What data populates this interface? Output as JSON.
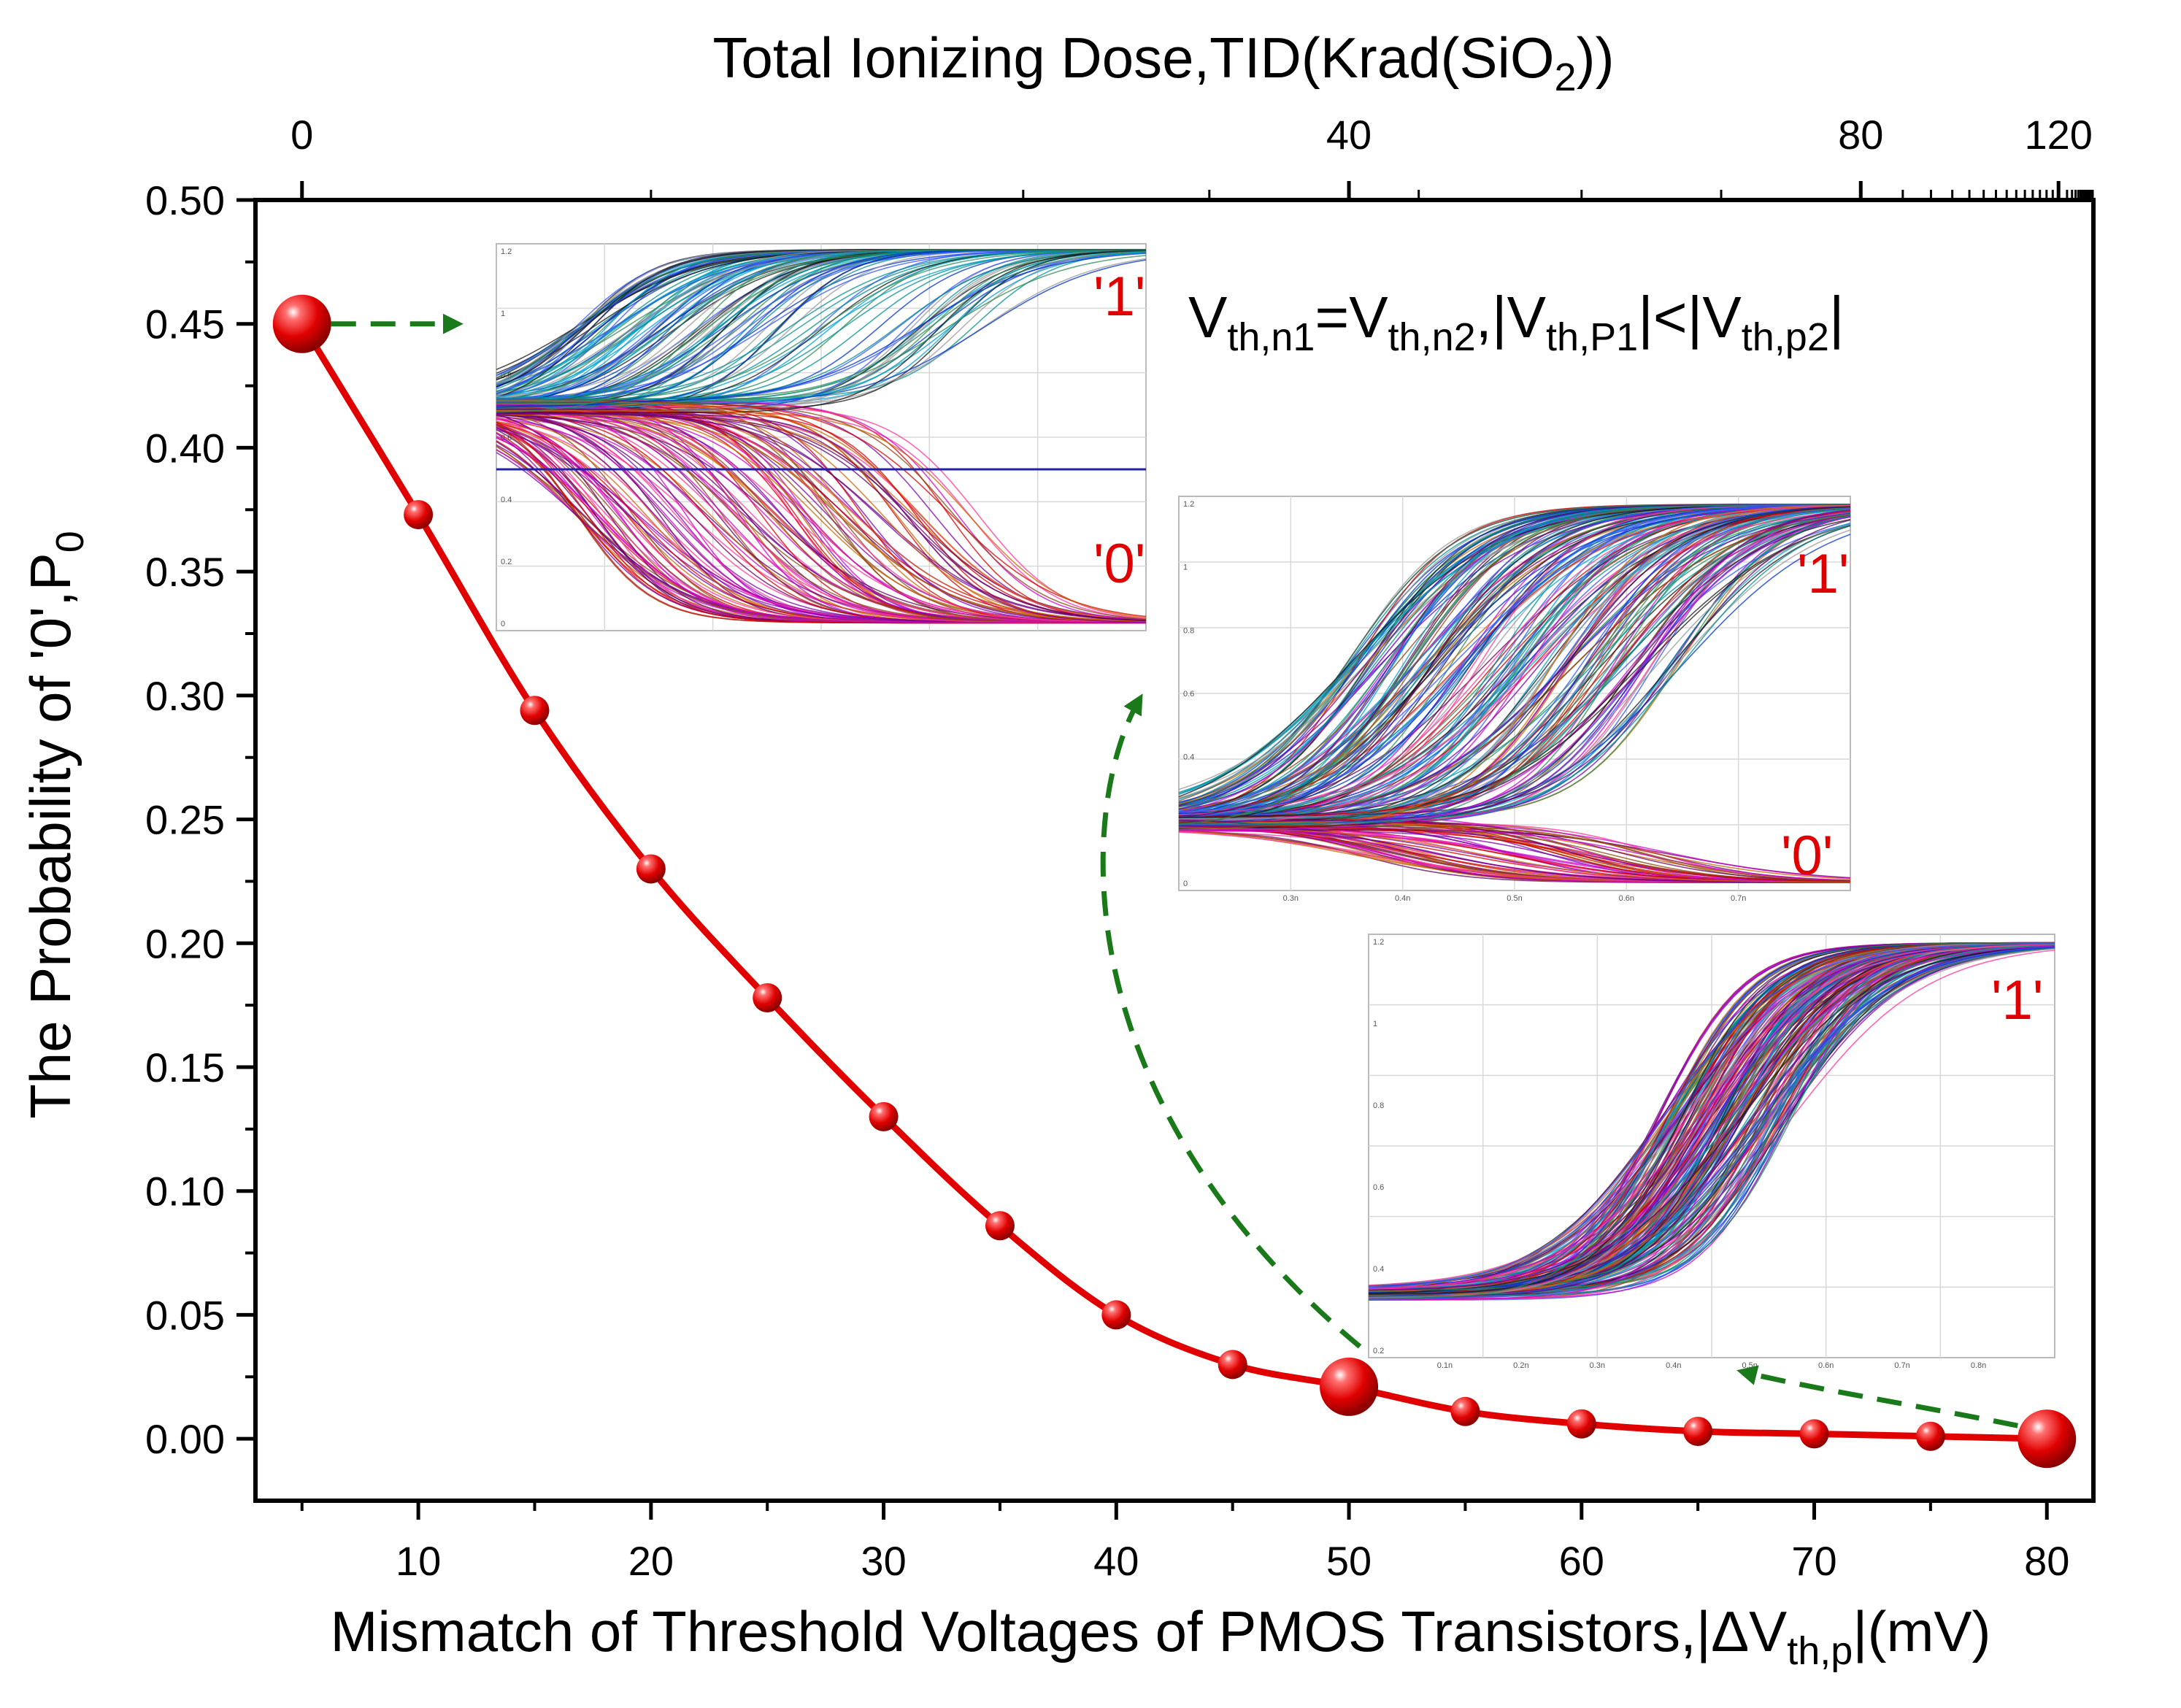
{
  "chart_data": {
    "type": "line",
    "xlabel_main": "Mismatch of Threshold Voltages of PMOS Transistors,|",
    "xlabel_delta": "ΔV",
    "xlabel_sub": "th,p",
    "xlabel_tail": "|(mV)",
    "ylabel_main": "The Probability of '0',P",
    "ylabel_sub": "0",
    "top_axis_label_main": "Total Ionizing Dose,TID(Krad(SiO",
    "top_axis_label_sub": "2",
    "top_axis_label_tail": "))",
    "xlim": [
      3,
      82
    ],
    "ylim": [
      -0.025,
      0.5
    ],
    "x_ticks": [
      "10",
      "20",
      "30",
      "40",
      "50",
      "60",
      "70",
      "80"
    ],
    "y_ticks": [
      "0.00",
      "0.05",
      "0.10",
      "0.15",
      "0.20",
      "0.25",
      "0.30",
      "0.35",
      "0.40",
      "0.45",
      "0.50"
    ],
    "top_ticks": [
      "0",
      "40",
      "80",
      "120"
    ],
    "top_tick_x_positions_mV": [
      5,
      50,
      72,
      80.5
    ],
    "series": [
      {
        "color": "#e00000",
        "x": [
          5,
          10,
          15,
          20,
          25,
          30,
          35,
          40,
          45,
          50,
          55,
          60,
          65,
          70,
          75,
          80
        ],
        "y": [
          0.45,
          0.373,
          0.294,
          0.23,
          0.178,
          0.13,
          0.086,
          0.05,
          0.03,
          0.021,
          0.011,
          0.006,
          0.003,
          0.002,
          0.001,
          0.0
        ],
        "highlighted_points_x": [
          5,
          50,
          80
        ]
      }
    ],
    "annotations": {
      "condition_parts": [
        "V",
        "th,n1",
        "=V",
        "th,n2",
        ",|V",
        "th,P1",
        "|<|V",
        "th,p2",
        "|"
      ],
      "inset1_label_1": "'1'",
      "inset1_label_0": "'0'",
      "inset2_label_1": "'1'",
      "inset2_label_0": "'0'",
      "inset3_label_1": "'1'"
    },
    "inset_tick_labels": {
      "inset1_y": [
        "1.2",
        "1",
        "0.8",
        "0.6",
        "0.4",
        "0.2",
        "0"
      ],
      "inset2_y": [
        "1.2",
        "1",
        "0.8",
        "0.6",
        "0.4",
        "0.2",
        "0"
      ],
      "inset2_x": [
        "0.3n",
        "0.4n",
        "0.5n",
        "0.6n",
        "0.7n"
      ],
      "inset3_y": [
        "1.2",
        "1",
        "0.8",
        "0.6",
        "0.4",
        "0.2"
      ],
      "inset3_x": [
        "0.1n",
        "0.2n",
        "0.3n",
        "0.4n",
        "0.5n",
        "0.6n",
        "0.7n",
        "0.8n"
      ]
    },
    "colors": {
      "series": "#e00000",
      "arrow": "#1a7a1a",
      "annotation": "#e00000"
    },
    "grid": false,
    "legend": "none"
  }
}
